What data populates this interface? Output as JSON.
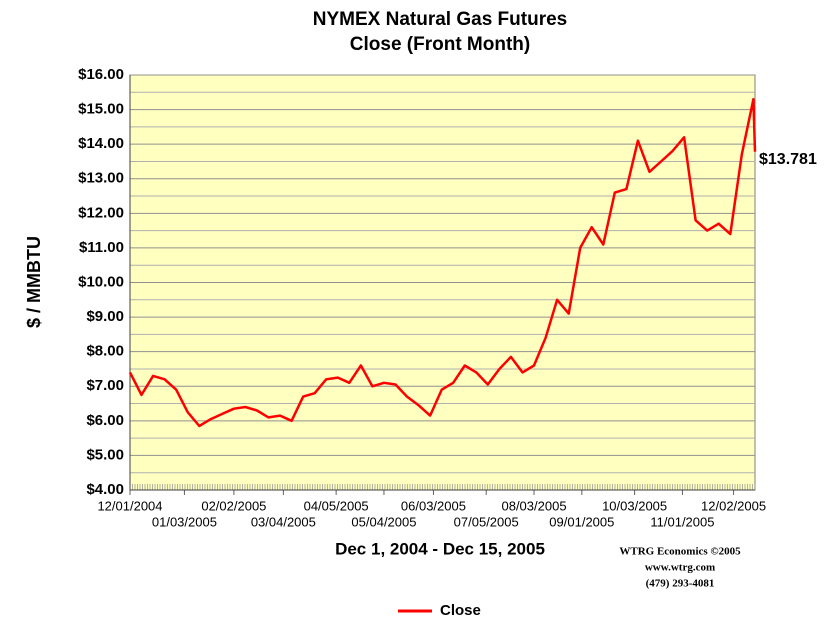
{
  "chart_data": {
    "type": "line",
    "title": "NYMEX Natural Gas Futures",
    "subtitle": "Close (Front Month)",
    "ylabel": "$ / MMBTU",
    "xlabel": "Dec 1, 2004 - Dec 15, 2005",
    "credits": [
      "WTRG Economics  ©2005",
      "www.wtrg.com",
      "(479) 293-4081"
    ],
    "x": [
      "12/01/2004",
      "12/08/2004",
      "12/15/2004",
      "12/22/2004",
      "12/29/2004",
      "01/05/2005",
      "01/12/2005",
      "01/19/2005",
      "01/26/2005",
      "02/02/2005",
      "02/09/2005",
      "02/16/2005",
      "02/23/2005",
      "03/02/2005",
      "03/09/2005",
      "03/16/2005",
      "03/23/2005",
      "03/30/2005",
      "04/06/2005",
      "04/13/2005",
      "04/20/2005",
      "04/27/2005",
      "05/04/2005",
      "05/11/2005",
      "05/18/2005",
      "05/25/2005",
      "06/01/2005",
      "06/08/2005",
      "06/15/2005",
      "06/22/2005",
      "06/29/2005",
      "07/06/2005",
      "07/13/2005",
      "07/20/2005",
      "07/27/2005",
      "08/03/2005",
      "08/10/2005",
      "08/17/2005",
      "08/24/2005",
      "08/31/2005",
      "09/07/2005",
      "09/14/2005",
      "09/21/2005",
      "09/28/2005",
      "10/05/2005",
      "10/12/2005",
      "10/19/2005",
      "10/26/2005",
      "11/02/2005",
      "11/09/2005",
      "11/16/2005",
      "11/23/2005",
      "11/30/2005",
      "12/07/2005",
      "12/14/2005",
      "12/15/2005"
    ],
    "series": [
      {
        "name": "Close",
        "color": "#ff0000",
        "values": [
          7.4,
          6.75,
          7.3,
          7.2,
          6.9,
          6.25,
          5.85,
          6.05,
          6.2,
          6.35,
          6.4,
          6.3,
          6.1,
          6.15,
          6.0,
          6.7,
          6.8,
          7.2,
          7.25,
          7.1,
          7.6,
          7.0,
          7.1,
          7.05,
          6.7,
          6.45,
          6.15,
          6.9,
          7.1,
          7.6,
          7.4,
          7.05,
          7.5,
          7.85,
          7.4,
          7.6,
          8.4,
          9.5,
          9.1,
          11.0,
          11.6,
          11.1,
          12.6,
          12.7,
          14.1,
          13.2,
          13.5,
          13.8,
          14.2,
          11.8,
          11.5,
          11.7,
          11.4,
          13.7,
          15.3,
          13.781
        ],
        "value_labels": [
          null,
          null,
          null,
          null,
          null,
          null,
          null,
          null,
          null,
          null,
          null,
          null,
          null,
          null,
          null,
          null,
          null,
          null,
          null,
          null,
          null,
          null,
          null,
          null,
          null,
          null,
          null,
          null,
          null,
          null,
          null,
          null,
          null,
          null,
          null,
          null,
          null,
          null,
          null,
          null,
          null,
          null,
          null,
          null,
          null,
          null,
          null,
          null,
          null,
          null,
          null,
          null,
          null,
          null,
          null,
          "$13.781"
        ]
      }
    ],
    "xlim": [
      "12/01/2004",
      "12/15/2005"
    ],
    "xticks": [
      "12/01/2004",
      "01/03/2005",
      "02/02/2005",
      "03/04/2005",
      "04/05/2005",
      "05/04/2005",
      "06/03/2005",
      "07/05/2005",
      "08/03/2005",
      "09/01/2005",
      "10/03/2005",
      "11/01/2005",
      "12/02/2005"
    ],
    "ylim": [
      4,
      16
    ],
    "yticks": [
      {
        "value": 4,
        "label": "$4.00"
      },
      {
        "value": 5,
        "label": "$5.00"
      },
      {
        "value": 6,
        "label": "$6.00"
      },
      {
        "value": 7,
        "label": "$7.00"
      },
      {
        "value": 8,
        "label": "$8.00"
      },
      {
        "value": 9,
        "label": "$9.00"
      },
      {
        "value": 10,
        "label": "$10.00"
      },
      {
        "value": 11,
        "label": "$11.00"
      },
      {
        "value": 12,
        "label": "$12.00"
      },
      {
        "value": 13,
        "label": "$13.00"
      },
      {
        "value": 14,
        "label": "$14.00"
      },
      {
        "value": 15,
        "label": "$15.00"
      },
      {
        "value": 16,
        "label": "$16.00"
      }
    ],
    "minor_ygrid": true,
    "background": "#ffffc0",
    "legend": "bottom"
  }
}
